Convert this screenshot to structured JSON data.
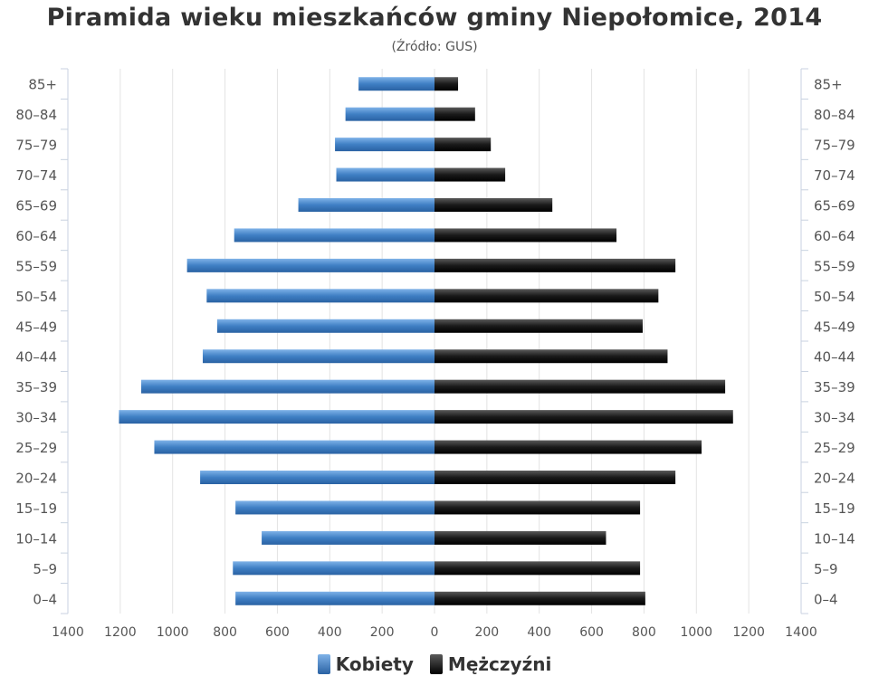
{
  "chart_data": {
    "type": "bar",
    "title": "Piramida wieku mieszkańców gminy Niepołomice, 2014",
    "subtitle": "(Źródło: GUS)",
    "categories": [
      "85+",
      "80–84",
      "75–79",
      "70–74",
      "65–69",
      "60–64",
      "55–59",
      "50–54",
      "45–49",
      "40–44",
      "35–39",
      "30–34",
      "25–29",
      "20–24",
      "15–19",
      "10–14",
      "5–9",
      "0–4"
    ],
    "series": [
      {
        "name": "Kobiety",
        "color": "#4a86c8",
        "values": [
          290,
          340,
          380,
          375,
          520,
          765,
          945,
          870,
          830,
          885,
          1120,
          1205,
          1070,
          895,
          760,
          660,
          770,
          760
        ]
      },
      {
        "name": "Mężczyźni",
        "color": "#1a1a1a",
        "values": [
          90,
          155,
          215,
          270,
          450,
          695,
          920,
          855,
          795,
          890,
          1110,
          1140,
          1020,
          920,
          785,
          655,
          785,
          805
        ]
      }
    ],
    "xlim": [
      -1400,
      1400
    ],
    "x_ticks": [
      "1400",
      "1200",
      "1000",
      "800",
      "600",
      "400",
      "200",
      "0",
      "200",
      "400",
      "600",
      "800",
      "1000",
      "1200",
      "1400"
    ],
    "grid": true,
    "legend": "bottom-center"
  }
}
